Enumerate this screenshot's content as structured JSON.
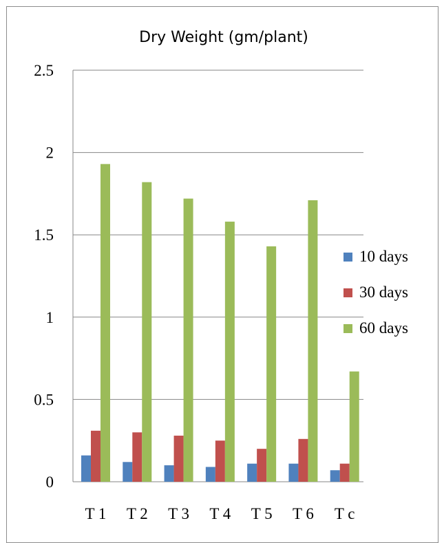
{
  "chart_data": {
    "type": "bar",
    "title": "Dry Weight (gm/plant)",
    "xlabel": "",
    "ylabel": "",
    "categories": [
      "T 1",
      "T 2",
      "T 3",
      "T 4",
      "T 5",
      "T 6",
      "T c"
    ],
    "ylim": [
      0,
      2.5
    ],
    "yticks": [
      "0",
      "0.5",
      "1",
      "1.5",
      "2",
      "2.5"
    ],
    "grid": true,
    "legend_position": "right",
    "series": [
      {
        "name": "10 days",
        "color": "#4f81bd",
        "values": [
          0.16,
          0.12,
          0.1,
          0.09,
          0.11,
          0.11,
          0.07
        ]
      },
      {
        "name": "30 days",
        "color": "#c0504d",
        "values": [
          0.31,
          0.3,
          0.28,
          0.25,
          0.2,
          0.26,
          0.11
        ]
      },
      {
        "name": "60 days",
        "color": "#9bbb59",
        "values": [
          1.93,
          1.82,
          1.72,
          1.58,
          1.43,
          1.71,
          0.67
        ]
      }
    ]
  }
}
